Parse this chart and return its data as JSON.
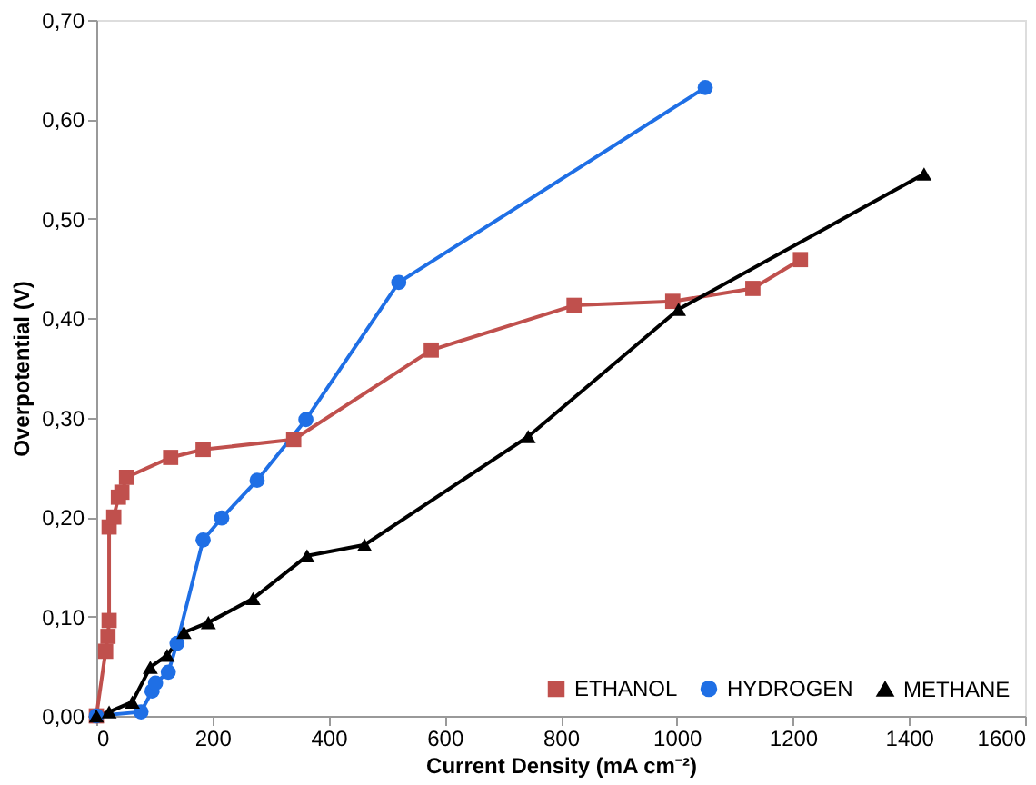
{
  "chart_data": {
    "type": "line",
    "xlabel": "Current Density (mA cm⁻²)",
    "ylabel": "Overpotential (V)",
    "xlim": [
      0,
      1600
    ],
    "xticks": [
      0,
      200,
      400,
      600,
      800,
      1000,
      1200,
      1400,
      1600
    ],
    "ylim": [
      0,
      0.7
    ],
    "yticks": [
      {
        "value": 0,
        "label": "0,00"
      },
      {
        "value": 0.1,
        "label": "0,10"
      },
      {
        "value": 0.2,
        "label": "0,20"
      },
      {
        "value": 0.3,
        "label": "0,30"
      },
      {
        "value": 0.4,
        "label": "0,40"
      },
      {
        "value": 0.5,
        "label": "0,50"
      },
      {
        "value": 0.6,
        "label": "0,60"
      },
      {
        "value": 0.7,
        "label": "0,70"
      }
    ],
    "grid": false,
    "legend": "bottom right",
    "line_style": "solid",
    "series": [
      {
        "name": "ETHANOL",
        "color": "#c0504d",
        "marker": "square",
        "x": [
          0,
          16,
          20,
          22,
          22,
          30,
          38,
          44,
          52,
          128,
          184,
          340,
          577,
          823,
          993,
          1131,
          1213
        ],
        "values": [
          0,
          0.065,
          0.08,
          0.096,
          0.19,
          0.2,
          0.22,
          0.225,
          0.24,
          0.26,
          0.268,
          0.278,
          0.368,
          0.413,
          0.417,
          0.43,
          0.459
        ]
      },
      {
        "name": "HYDROGEN",
        "color": "#1f6fe5",
        "marker": "circle",
        "x": [
          0,
          77,
          96,
          102,
          124,
          139,
          184,
          216,
          277,
          361,
          521,
          1049
        ],
        "values": [
          0,
          0.004,
          0.025,
          0.033,
          0.044,
          0.073,
          0.177,
          0.199,
          0.237,
          0.298,
          0.436,
          0.632
        ]
      },
      {
        "name": "METHANE",
        "color": "#000000",
        "marker": "triangle",
        "x": [
          0,
          22,
          62,
          93,
          122,
          151,
          193,
          270,
          363,
          462,
          744,
          1003,
          1426
        ],
        "values": [
          0,
          0.004,
          0.014,
          0.049,
          0.061,
          0.084,
          0.094,
          0.118,
          0.161,
          0.172,
          0.281,
          0.409,
          0.545
        ]
      }
    ]
  }
}
